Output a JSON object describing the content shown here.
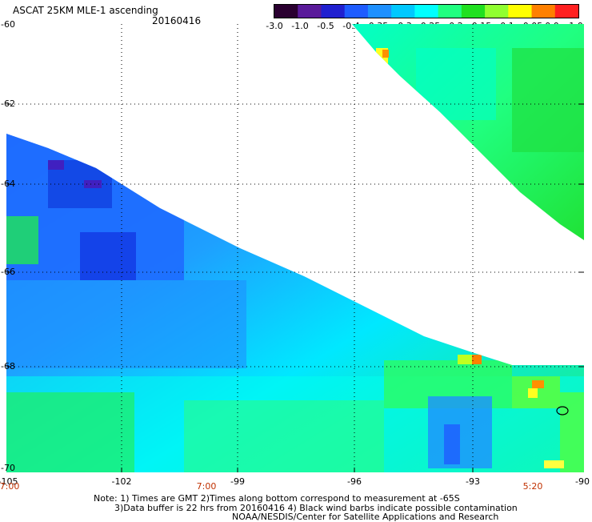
{
  "header": {
    "title": "ASCAT 25KM MLE-1 ascending",
    "date": "20160416"
  },
  "colorbar": {
    "labels": [
      "-3.0",
      "-1.0",
      "-0.5",
      "-0.4",
      "-0.35",
      "-0.3",
      "-0.25",
      "-0.2",
      "-0.15",
      "-0.1",
      "-0.05",
      "0.0",
      "1.0"
    ],
    "colors": [
      "#2a0030",
      "#5a1a9a",
      "#2020d0",
      "#1e5cff",
      "#1e90ff",
      "#00c8ff",
      "#00ffff",
      "#20ff80",
      "#20e020",
      "#90ff30",
      "#ffff00",
      "#ff8000",
      "#ff2020"
    ]
  },
  "map": {
    "lon_ticks": [
      "-105",
      "-102",
      "-99",
      "-96",
      "-93",
      "-90"
    ],
    "lat_ticks": [
      "-60",
      "-62",
      "-64",
      "-66",
      "-68",
      "-70"
    ],
    "time_labels": [
      "7:00",
      "7:00",
      "5:20"
    ]
  },
  "notes": [
    "Note: 1) Times are GMT 2)Times along bottom correspond to measurement at -65S",
    "3)Data buffer is 22 hrs from 20160416 4) Black wind barbs indicate possible contamination",
    "NOAA/NESDIS/Center for Satellite Applications and Research"
  ]
}
